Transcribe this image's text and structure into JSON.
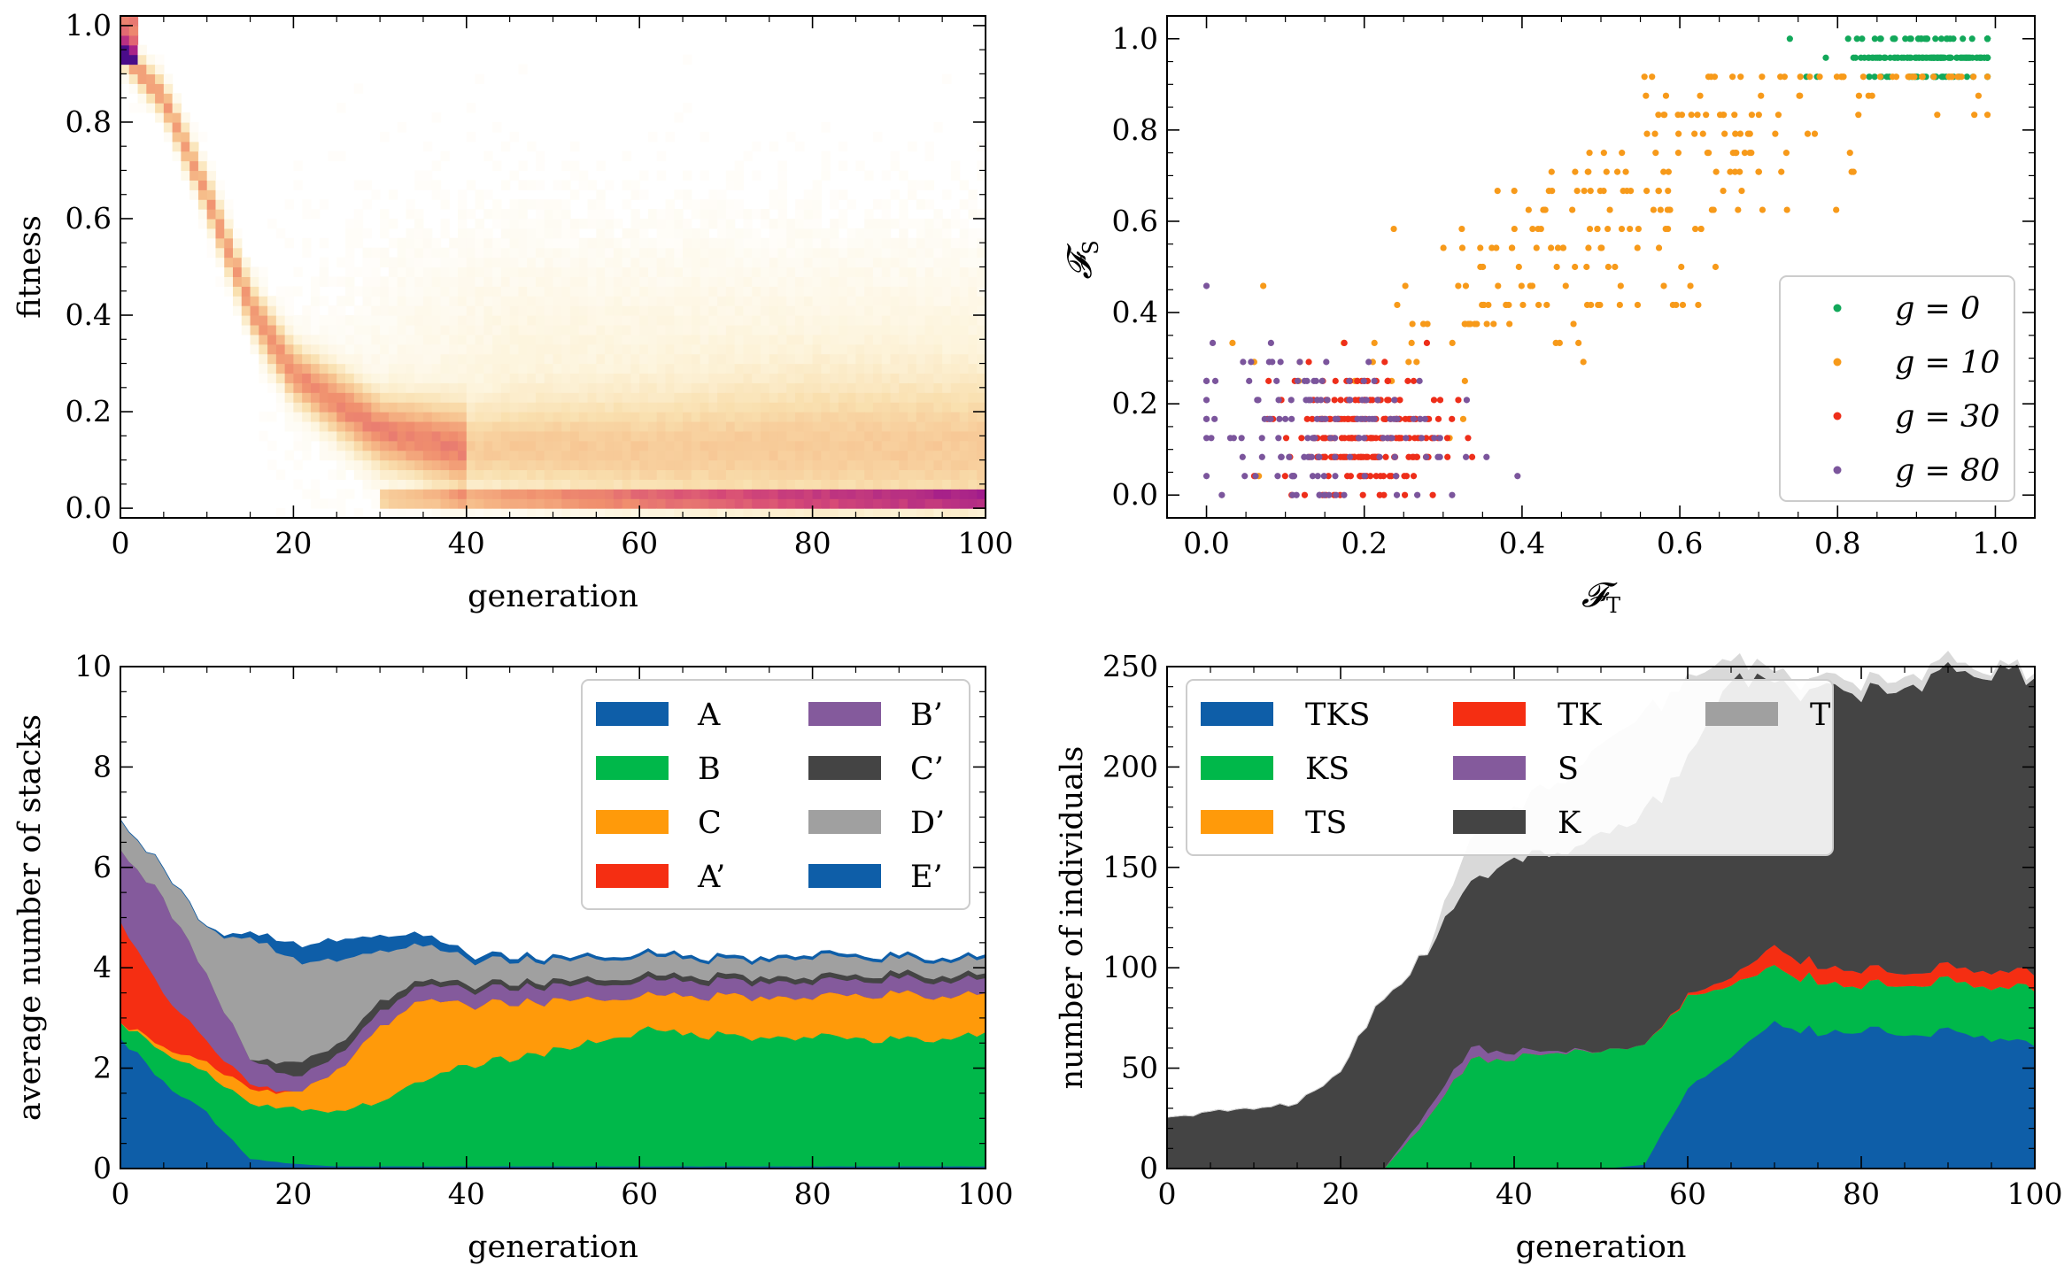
{
  "chart_data": [
    {
      "id": "heatmap",
      "type": "heatmap",
      "title": "",
      "xlabel": "generation",
      "ylabel": "fitness",
      "xlim": [
        0,
        100
      ],
      "ylim": [
        -0.02,
        1.02
      ],
      "xticks": [
        "0",
        "20",
        "40",
        "60",
        "80",
        "100"
      ],
      "yticks": [
        "0.0",
        "0.2",
        "0.4",
        "0.6",
        "0.8",
        "1.0"
      ],
      "colormap": [
        "#ffffff",
        "#fdf4dc",
        "#f9dfae",
        "#f6bd8a",
        "#f08f6e",
        "#d74b76",
        "#a01b8c",
        "#4a0c8a"
      ],
      "ridge": {
        "x": [
          0,
          5,
          10,
          15,
          20,
          25,
          30,
          35,
          40,
          50,
          60,
          70,
          80,
          90,
          100
        ],
        "fitness": [
          0.95,
          0.85,
          0.65,
          0.42,
          0.28,
          0.22,
          0.16,
          0.14,
          0.12,
          0.12,
          0.11,
          0.11,
          0.11,
          0.11,
          0.11
        ]
      },
      "bottom_band": {
        "fitness": 0.02,
        "start_generation": 30
      }
    },
    {
      "id": "scatter",
      "type": "scatter",
      "xlabel": "𝓕",
      "xlabel_sub": "T",
      "ylabel": "𝓕",
      "ylabel_sub": "S",
      "xlim": [
        -0.05,
        1.05
      ],
      "ylim": [
        -0.05,
        1.05
      ],
      "xticks": [
        "0.0",
        "0.2",
        "0.4",
        "0.6",
        "0.8",
        "1.0"
      ],
      "yticks": [
        "0.0",
        "0.2",
        "0.4",
        "0.6",
        "0.8",
        "1.0"
      ],
      "legend_position": "bottom-right",
      "series": [
        {
          "name": "g = 0",
          "color": "#12a85a",
          "cx": 0.92,
          "cy": 0.96,
          "sx": 0.06,
          "sy": 0.025,
          "n": 160
        },
        {
          "name": "g = 10",
          "color": "#f79a1a",
          "cx": 0.55,
          "cy": 0.6,
          "sx": 0.2,
          "sy": 0.2,
          "n": 260
        },
        {
          "name": "g = 30",
          "color": "#ee2e1a",
          "cx": 0.2,
          "cy": 0.14,
          "sx": 0.05,
          "sy": 0.07,
          "n": 220
        },
        {
          "name": "g = 80",
          "color": "#7b559c",
          "cx": 0.13,
          "cy": 0.14,
          "sx": 0.08,
          "sy": 0.09,
          "n": 140
        }
      ]
    },
    {
      "id": "stacks",
      "type": "area",
      "xlabel": "generation",
      "ylabel": "average number of stacks",
      "xlim": [
        0,
        100
      ],
      "ylim": [
        0,
        10
      ],
      "xticks": [
        "0",
        "20",
        "40",
        "60",
        "80",
        "100"
      ],
      "yticks": [
        "0",
        "2",
        "4",
        "6",
        "8",
        "10"
      ],
      "legend_position": "top-right",
      "x": [
        0,
        5,
        10,
        15,
        20,
        25,
        30,
        35,
        40,
        50,
        60,
        70,
        80,
        90,
        100
      ],
      "series": [
        {
          "name": "A",
          "color": "#0e5ea8",
          "values": [
            2.6,
            1.7,
            1.1,
            0.2,
            0.1,
            0.05,
            0.05,
            0.05,
            0.05,
            0.05,
            0.05,
            0.05,
            0.05,
            0.05,
            0.05
          ]
        },
        {
          "name": "B",
          "color": "#00b84a",
          "values": [
            0.3,
            0.6,
            0.8,
            1.1,
            1.1,
            1.1,
            1.3,
            1.7,
            2.0,
            2.3,
            2.7,
            2.6,
            2.6,
            2.5,
            2.6
          ]
        },
        {
          "name": "C",
          "color": "#ff9a0a",
          "values": [
            0.0,
            0.1,
            0.2,
            0.3,
            0.3,
            0.8,
            1.5,
            1.6,
            1.2,
            1.0,
            0.7,
            0.8,
            0.8,
            0.9,
            0.8
          ]
        },
        {
          "name": "A’",
          "color": "#f52e12",
          "values": [
            2.0,
            1.1,
            0.4,
            0.1,
            0.0,
            0.0,
            0.0,
            0.0,
            0.0,
            0.0,
            0.0,
            0.0,
            0.0,
            0.0,
            0.0
          ]
        },
        {
          "name": "B’",
          "color": "#845a9c",
          "values": [
            1.4,
            1.9,
            1.3,
            0.5,
            0.3,
            0.3,
            0.3,
            0.3,
            0.3,
            0.3,
            0.3,
            0.3,
            0.3,
            0.3,
            0.3
          ]
        },
        {
          "name": "C’",
          "color": "#444444",
          "values": [
            0.0,
            0.0,
            0.0,
            0.0,
            0.3,
            0.2,
            0.2,
            0.1,
            0.1,
            0.1,
            0.1,
            0.1,
            0.1,
            0.1,
            0.1
          ]
        },
        {
          "name": "D’",
          "color": "#a0a0a0",
          "values": [
            0.6,
            0.6,
            0.9,
            2.4,
            2.1,
            1.7,
            1.0,
            0.7,
            0.5,
            0.4,
            0.4,
            0.3,
            0.4,
            0.3,
            0.3
          ]
        },
        {
          "name": "E’",
          "color": "#0e5ea8",
          "values": [
            0.0,
            0.0,
            0.0,
            0.1,
            0.3,
            0.4,
            0.3,
            0.2,
            0.1,
            0.05,
            0.05,
            0.05,
            0.05,
            0.05,
            0.05
          ]
        }
      ]
    },
    {
      "id": "individuals",
      "type": "area",
      "xlabel": "generation",
      "ylabel": "number of individuals",
      "xlim": [
        0,
        100
      ],
      "ylim": [
        0,
        250
      ],
      "xticks": [
        "0",
        "20",
        "40",
        "60",
        "80",
        "100"
      ],
      "yticks": [
        "0",
        "50",
        "100",
        "150",
        "200",
        "250"
      ],
      "legend_position": "top-left",
      "x": [
        0,
        5,
        10,
        15,
        20,
        25,
        30,
        35,
        40,
        45,
        50,
        55,
        60,
        65,
        70,
        75,
        80,
        85,
        90,
        95,
        100
      ],
      "series": [
        {
          "name": "TKS",
          "color": "#0e5ea8",
          "values": [
            0,
            0,
            0,
            0,
            0,
            0,
            0,
            0,
            0,
            0,
            0,
            2,
            40,
            55,
            72,
            68,
            70,
            68,
            68,
            65,
            62
          ]
        },
        {
          "name": "KS",
          "color": "#00b84a",
          "values": [
            0,
            0,
            0,
            0,
            0,
            0,
            25,
            55,
            55,
            58,
            58,
            60,
            45,
            35,
            28,
            25,
            22,
            25,
            25,
            25,
            28
          ]
        },
        {
          "name": "TS",
          "color": "#ff9a0a",
          "values": [
            0,
            0,
            0,
            0,
            0,
            0,
            0,
            0,
            0,
            0,
            0,
            0,
            0,
            0,
            0,
            0,
            0,
            0,
            0,
            0,
            0
          ]
        },
        {
          "name": "TK",
          "color": "#f52e12",
          "values": [
            0,
            0,
            0,
            0,
            0,
            0,
            0,
            0,
            0,
            0,
            0,
            0,
            1,
            4,
            10,
            8,
            8,
            6,
            7,
            8,
            8
          ]
        },
        {
          "name": "S",
          "color": "#845a9c",
          "values": [
            0,
            0,
            0,
            0,
            0,
            0,
            4,
            6,
            3,
            1,
            0,
            0,
            0,
            0,
            0,
            0,
            0,
            0,
            0,
            0,
            0
          ]
        },
        {
          "name": "K",
          "color": "#444444",
          "values": [
            25,
            28,
            30,
            32,
            50,
            85,
            80,
            85,
            95,
            100,
            110,
            115,
            115,
            150,
            130,
            140,
            140,
            145,
            145,
            148,
            145
          ]
        },
        {
          "name": "T",
          "color": "#a0a0a0",
          "values": [
            0,
            0,
            0,
            0,
            0,
            0,
            0,
            0,
            0,
            0,
            0,
            0,
            0,
            0,
            0,
            0,
            0,
            0,
            0,
            0,
            0
          ]
        },
        {
          "name": "",
          "color": "#d9d9d9",
          "values": [
            0,
            0,
            0,
            0,
            0,
            0,
            0,
            20,
            25,
            35,
            45,
            50,
            40,
            10,
            5,
            5,
            5,
            5,
            5,
            2,
            2
          ]
        }
      ]
    }
  ]
}
